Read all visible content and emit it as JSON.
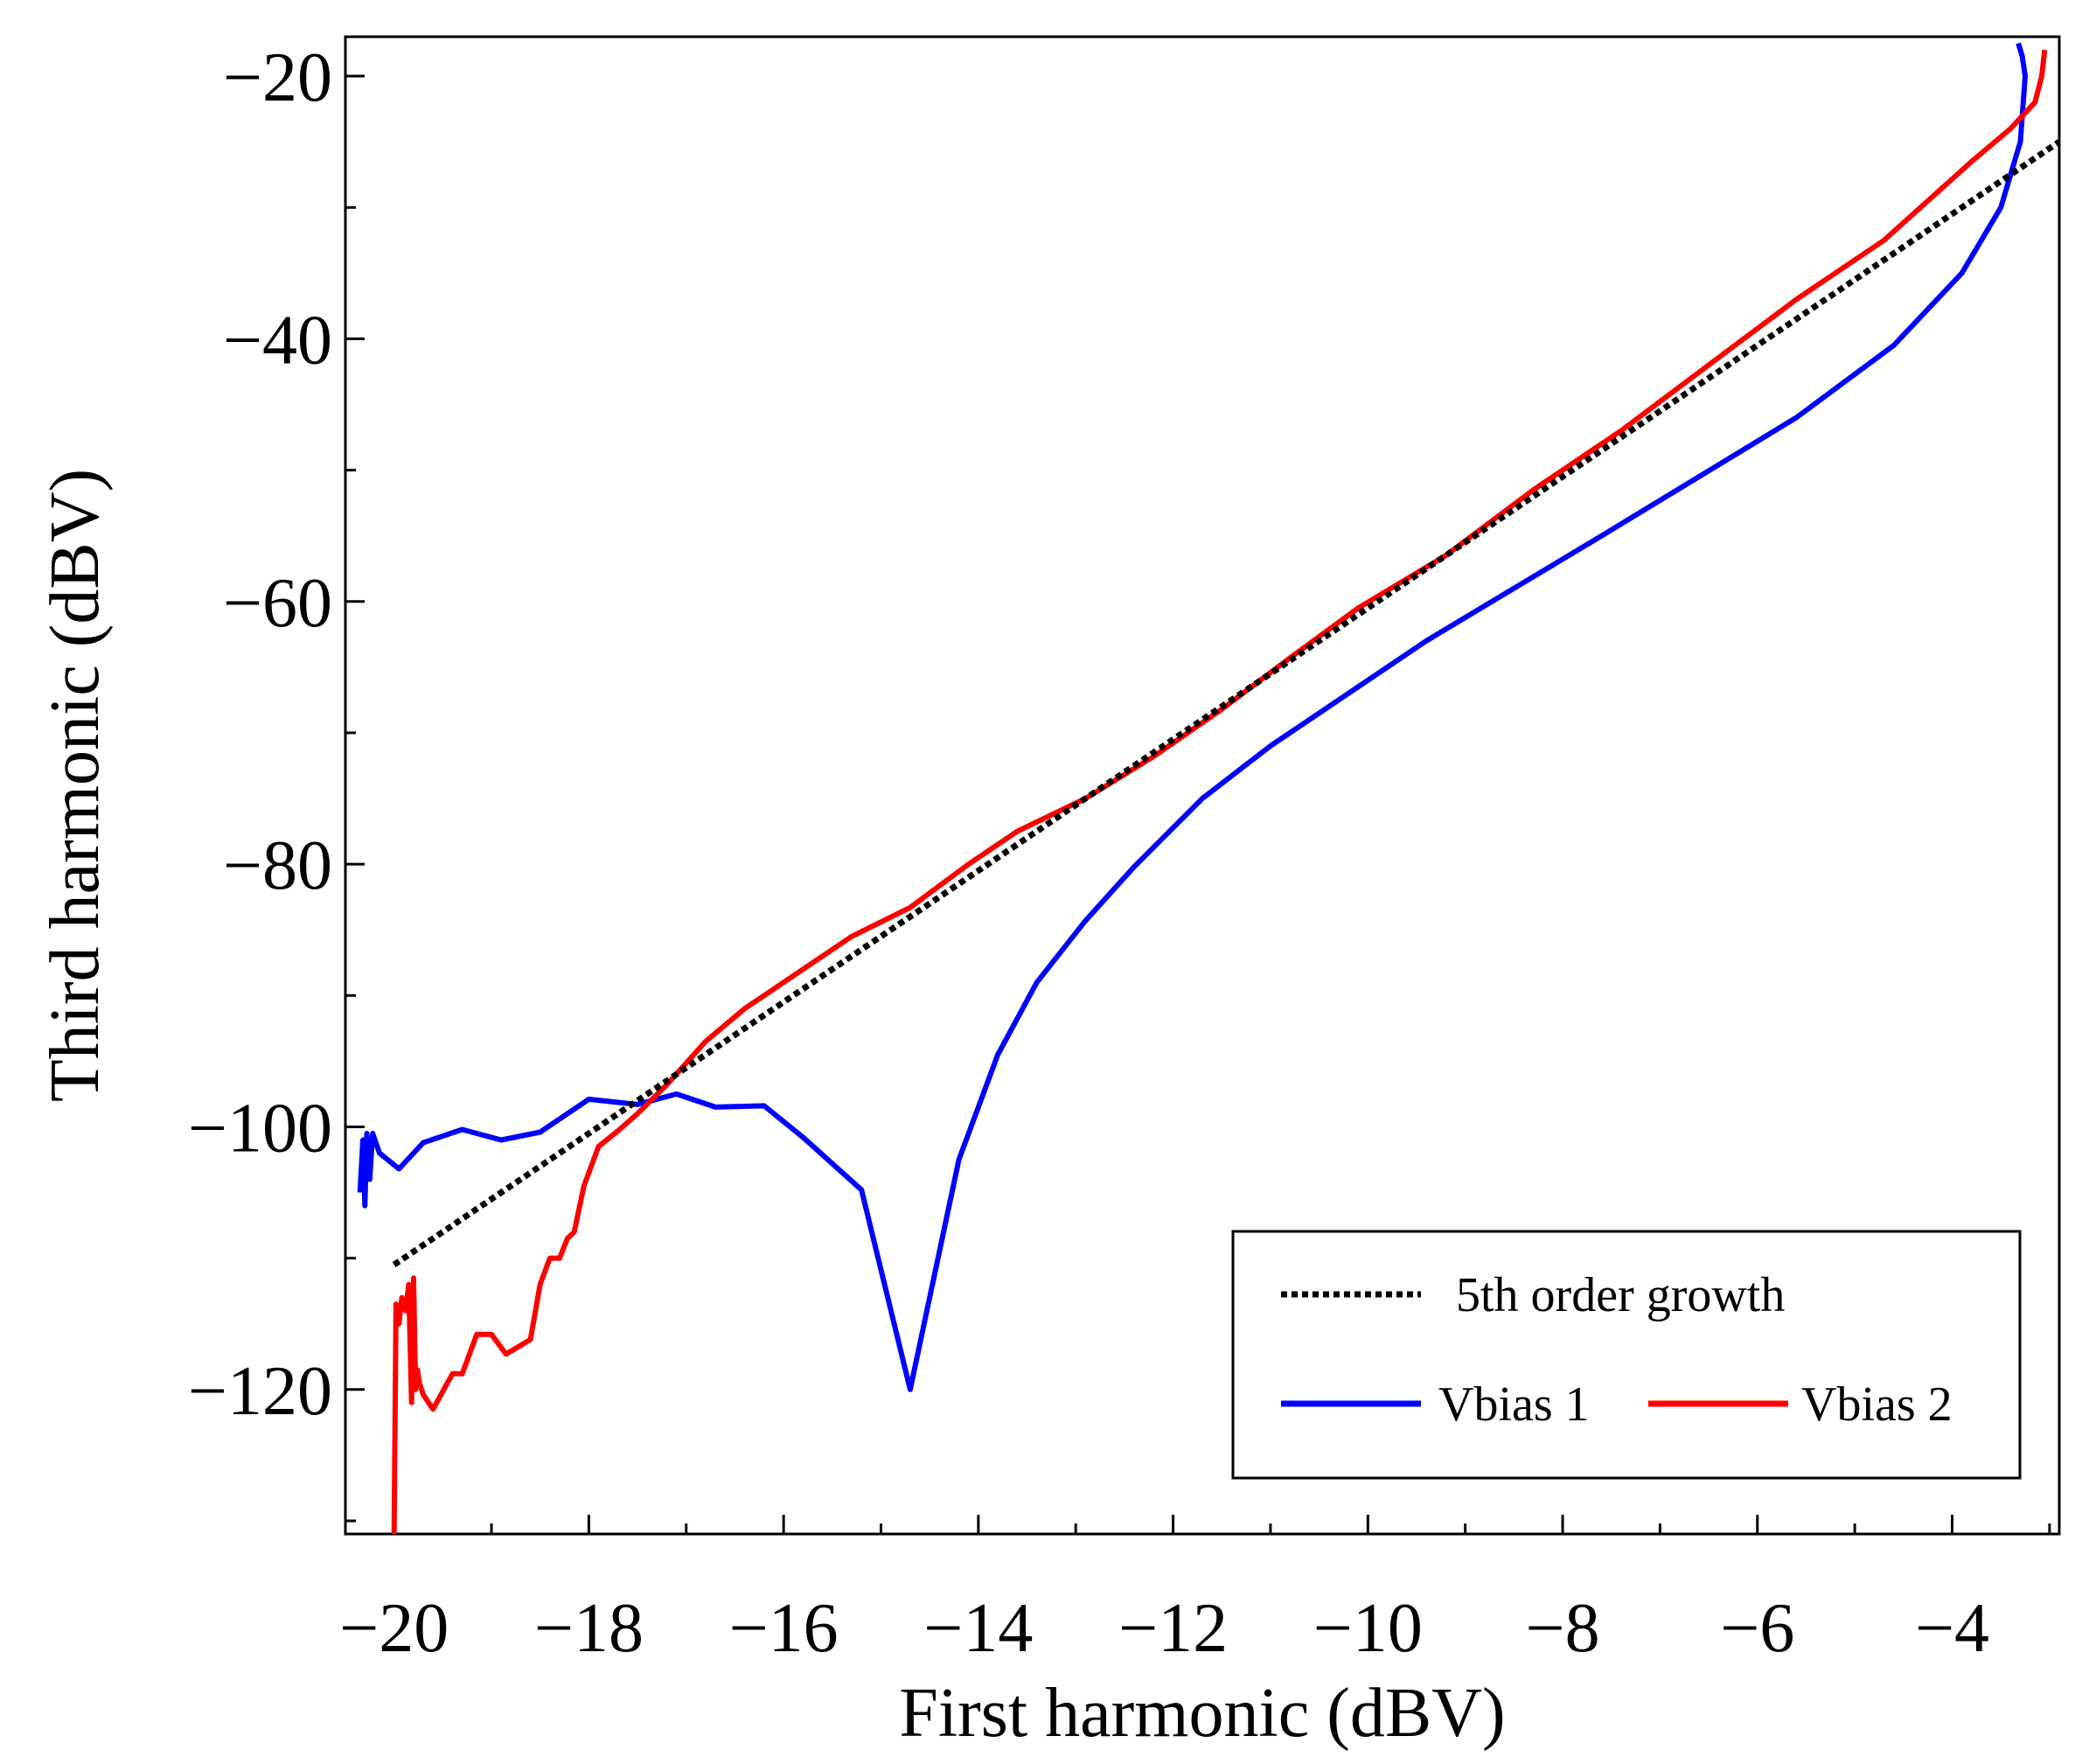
{
  "chart_data": {
    "type": "line",
    "title": "",
    "xlabel": "First harmonic (dBV)",
    "ylabel": "Third harmonic (dBV)",
    "xlim": [
      -20.5,
      -2.9
    ],
    "ylim": [
      -131,
      -17
    ],
    "x_ticks": [
      {
        "value": -20,
        "label": "−20"
      },
      {
        "value": -18,
        "label": "−18"
      },
      {
        "value": -16,
        "label": "−16"
      },
      {
        "value": -14,
        "label": "−14"
      },
      {
        "value": -12,
        "label": "−12"
      },
      {
        "value": -10,
        "label": "−10"
      },
      {
        "value": -8,
        "label": "−8"
      },
      {
        "value": -6,
        "label": "−6"
      },
      {
        "value": -4,
        "label": "−4"
      }
    ],
    "x_minor_ticks": [
      -19,
      -17,
      -15,
      -13,
      -11,
      -9,
      -7,
      -5,
      -3
    ],
    "y_ticks": [
      {
        "value": -20,
        "label": "−20"
      },
      {
        "value": -40,
        "label": "−40"
      },
      {
        "value": -60,
        "label": "−60"
      },
      {
        "value": -80,
        "label": "−80"
      },
      {
        "value": -100,
        "label": "−100"
      },
      {
        "value": -120,
        "label": "−120"
      }
    ],
    "y_minor_ticks": [
      -30,
      -50,
      -70,
      -90,
      -110,
      -130
    ],
    "grid": false,
    "legend_position": "bottom-right",
    "series": [
      {
        "name": "5th order growth",
        "style": "dotted",
        "color": "#000000",
        "x": [
          -20,
          -2.9
        ],
        "y": [
          -110.5,
          -25
        ]
      },
      {
        "name": "Vbias 1",
        "style": "solid",
        "color": "#0000ff",
        "x": [
          -20.35,
          -20.32,
          -20.3,
          -20.28,
          -20.25,
          -20.22,
          -20.15,
          -19.95,
          -19.7,
          -19.3,
          -18.9,
          -18.5,
          -18.0,
          -17.5,
          -17.1,
          -16.7,
          -16.2,
          -15.8,
          -15.2,
          -14.7,
          -14.2,
          -13.8,
          -13.4,
          -12.9,
          -12.4,
          -11.7,
          -11.0,
          -10.2,
          -9.4,
          -8.5,
          -7.6,
          -6.6,
          -5.6,
          -4.6,
          -3.9,
          -3.5,
          -3.3,
          -3.25,
          -3.28,
          -3.32
        ],
        "y": [
          -105,
          -101,
          -106,
          -100.5,
          -104,
          -100.5,
          -102,
          -103.2,
          -101.2,
          -100.2,
          -101,
          -100.4,
          -97.9,
          -98.3,
          -97.5,
          -98.5,
          -98.4,
          -100.8,
          -104.8,
          -120,
          -102.5,
          -94.5,
          -89,
          -84.3,
          -80.2,
          -75,
          -71,
          -67,
          -63,
          -59,
          -55,
          -50.5,
          -46,
          -40.5,
          -35,
          -30,
          -25,
          -20,
          -18.5,
          -17.5
        ]
      },
      {
        "name": "Vbias 2",
        "style": "solid",
        "color": "#ff0000",
        "x": [
          -20.0,
          -19.98,
          -19.95,
          -19.92,
          -19.88,
          -19.85,
          -19.82,
          -19.8,
          -19.78,
          -19.76,
          -19.74,
          -19.7,
          -19.6,
          -19.4,
          -19.3,
          -19.15,
          -19.0,
          -18.85,
          -18.6,
          -18.5,
          -18.4,
          -18.3,
          -18.22,
          -18.15,
          -18.05,
          -17.9,
          -17.7,
          -17.5,
          -17.2,
          -16.8,
          -16.4,
          -15.9,
          -15.3,
          -14.7,
          -14.1,
          -13.6,
          -12.9,
          -12.2,
          -11.5,
          -10.8,
          -10.1,
          -9.2,
          -8.3,
          -7.4,
          -6.5,
          -5.6,
          -4.7,
          -3.8,
          -3.4,
          -3.15,
          -3.08,
          -3.05
        ],
        "y": [
          -131,
          -113.5,
          -115,
          -113,
          -114,
          -112,
          -121,
          -111.5,
          -120,
          -118.5,
          -119.5,
          -120.4,
          -121.5,
          -118.8,
          -118.8,
          -115.8,
          -115.8,
          -117.3,
          -116.2,
          -112,
          -110,
          -110,
          -108.5,
          -108,
          -104.5,
          -101.5,
          -100.3,
          -99,
          -96.8,
          -93.5,
          -91,
          -88.5,
          -85.5,
          -83.3,
          -80,
          -77.5,
          -75,
          -71.8,
          -68.2,
          -64.3,
          -60.5,
          -56.5,
          -51.5,
          -47,
          -42,
          -37,
          -32.5,
          -26.5,
          -24,
          -22,
          -20,
          -18
        ]
      }
    ]
  }
}
